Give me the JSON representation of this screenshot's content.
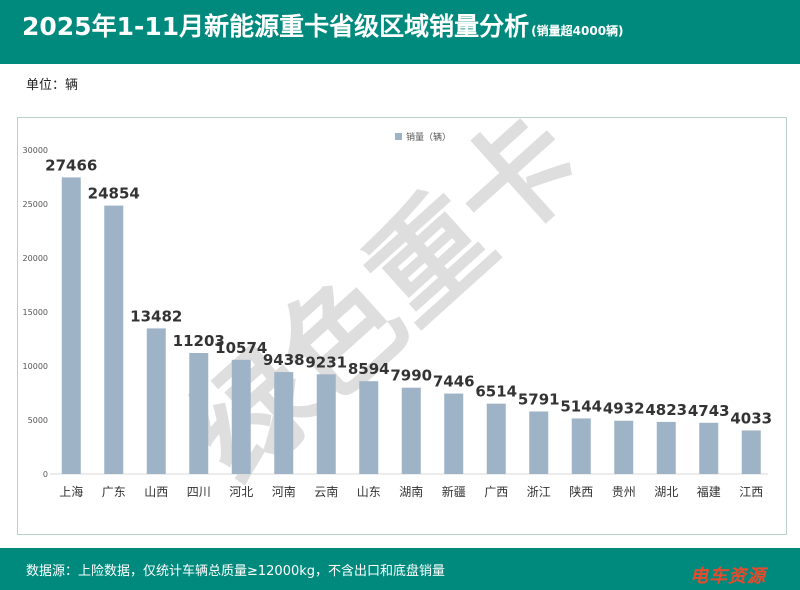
{
  "header": {
    "title": "2025年1-11月新能源重卡省级区域销量分析",
    "subtitle": "(销量超4000辆)"
  },
  "unit_label": "单位：辆",
  "footer": {
    "source": "数据源：上险数据，仅统计车辆总质量≥12000kg，不含出口和底盘销量",
    "brand": "电车资源"
  },
  "watermark": "绿色重卡",
  "colors": {
    "header_bg": "#008a7d",
    "bar": "#9fb3c7",
    "label": "#333333",
    "brand": "#e84a2b"
  },
  "chart_data": {
    "type": "bar",
    "categories": [
      "上海",
      "广东",
      "山西",
      "四川",
      "河北",
      "河南",
      "云南",
      "山东",
      "湖南",
      "新疆",
      "广西",
      "浙江",
      "陕西",
      "贵州",
      "湖北",
      "福建",
      "江西"
    ],
    "series": [
      {
        "name": "销量（辆）",
        "values": [
          27466,
          24854,
          13482,
          11203,
          10574,
          9438,
          9231,
          8594,
          7990,
          7446,
          6514,
          5791,
          5144,
          4932,
          4823,
          4743,
          4033
        ]
      }
    ],
    "ylim": [
      0,
      30000
    ],
    "yticks": [
      0,
      5000,
      10000,
      15000,
      20000,
      25000,
      30000
    ],
    "legend_position": "top-center",
    "grid": false
  }
}
